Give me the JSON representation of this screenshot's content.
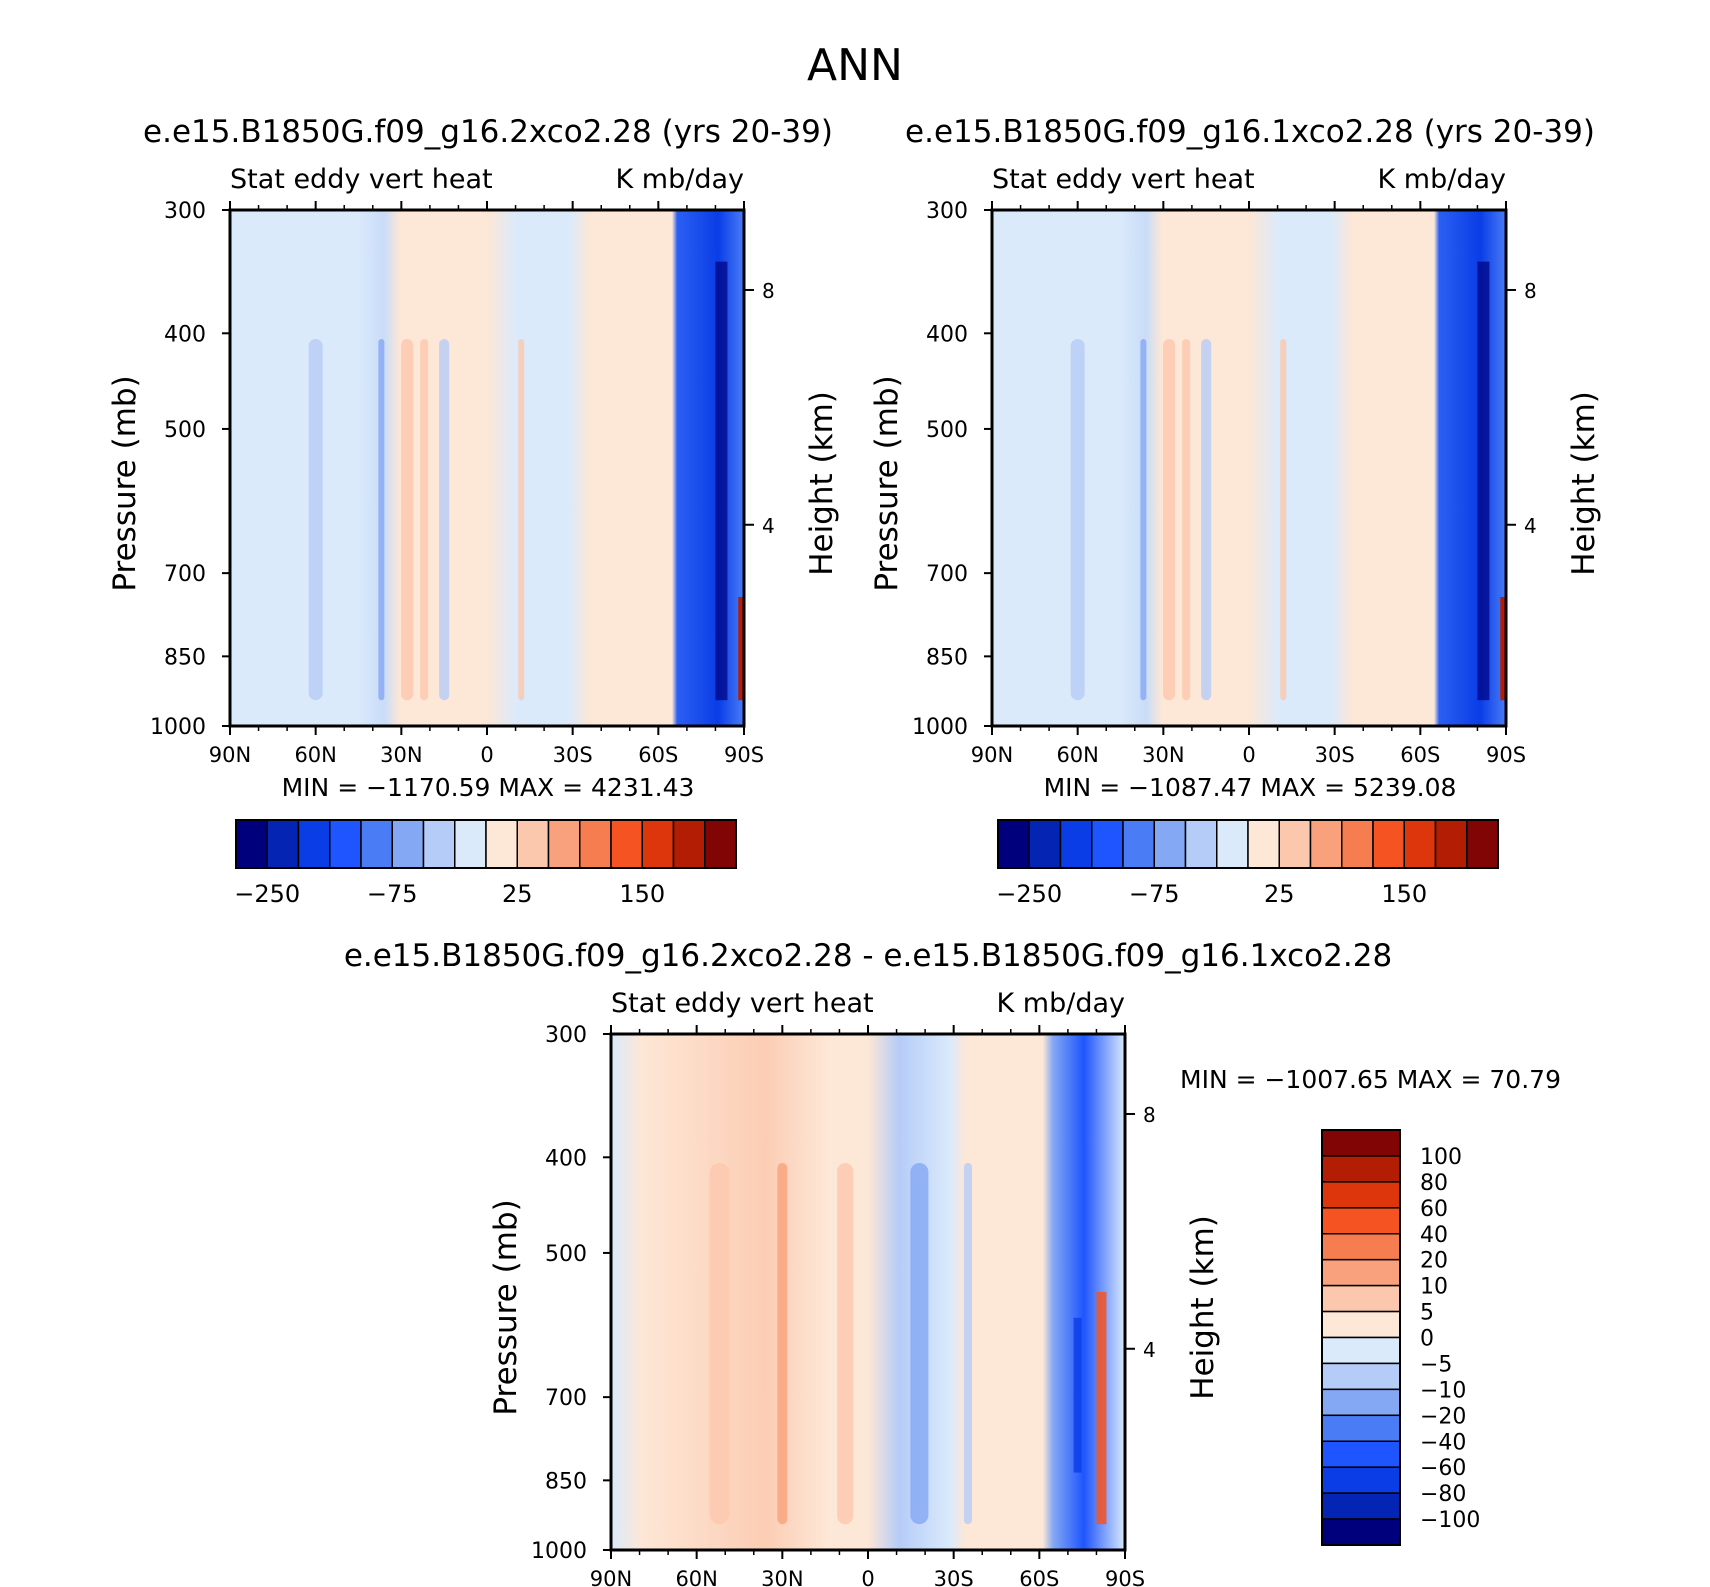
{
  "figure_title": "ANN",
  "chart_data": [
    {
      "type": "heatmap",
      "title": "e.e15.B1850G.f09_g16.2xco2.28 (yrs 20-39)",
      "variable": "Stat eddy vert heat",
      "units": "K mb/day",
      "xlabel": "",
      "ylabel": "Pressure (mb)",
      "ylabel_right": "Height (km)",
      "x_ticks": [
        "90N",
        "60N",
        "30N",
        "0",
        "30S",
        "60S",
        "90S"
      ],
      "y_ticks": [
        "300",
        "400",
        "500",
        "700",
        "850",
        "1000"
      ],
      "height_ticks": [
        "8",
        "4"
      ],
      "xlim": [
        90,
        -90
      ],
      "ylim": [
        1000,
        300
      ],
      "y_scale": "log",
      "min_label": "MIN = -1170.59",
      "max_label": "MAX = 4231.43",
      "colorbar": {
        "orientation": "horizontal",
        "colors": [
          "#00007d",
          "#0424b4",
          "#0a3de6",
          "#1f55ff",
          "#4a7cf6",
          "#84a8f4",
          "#b6ccf8",
          "#daeafb",
          "#fde7d6",
          "#fcc8ad",
          "#f9a17c",
          "#f67d4f",
          "#f55321",
          "#dd360c",
          "#b21d04",
          "#820505"
        ],
        "tick_labels": [
          "-250",
          "-75",
          "25",
          "150"
        ]
      }
    },
    {
      "type": "heatmap",
      "title": "e.e15.B1850G.f09_g16.1xco2.28 (yrs 20-39)",
      "variable": "Stat eddy vert heat",
      "units": "K mb/day",
      "xlabel": "",
      "ylabel": "Pressure (mb)",
      "ylabel_right": "Height (km)",
      "x_ticks": [
        "90N",
        "60N",
        "30N",
        "0",
        "30S",
        "60S",
        "90S"
      ],
      "y_ticks": [
        "300",
        "400",
        "500",
        "700",
        "850",
        "1000"
      ],
      "height_ticks": [
        "8",
        "4"
      ],
      "xlim": [
        90,
        -90
      ],
      "ylim": [
        1000,
        300
      ],
      "y_scale": "log",
      "min_label": "MIN = -1087.47",
      "max_label": "MAX = 5239.08",
      "colorbar": {
        "orientation": "horizontal",
        "colors": [
          "#00007d",
          "#0424b4",
          "#0a3de6",
          "#1f55ff",
          "#4a7cf6",
          "#84a8f4",
          "#b6ccf8",
          "#daeafb",
          "#fde7d6",
          "#fcc8ad",
          "#f9a17c",
          "#f67d4f",
          "#f55321",
          "#dd360c",
          "#b21d04",
          "#820505"
        ],
        "tick_labels": [
          "-250",
          "-75",
          "25",
          "150"
        ]
      }
    },
    {
      "type": "heatmap",
      "title": "e.e15.B1850G.f09_g16.2xco2.28 - e.e15.B1850G.f09_g16.1xco2.28",
      "variable": "Stat eddy vert heat",
      "units": "K mb/day",
      "xlabel": "",
      "ylabel": "Pressure (mb)",
      "ylabel_right": "Height (km)",
      "x_ticks": [
        "90N",
        "60N",
        "30N",
        "0",
        "30S",
        "60S",
        "90S"
      ],
      "y_ticks": [
        "300",
        "400",
        "500",
        "700",
        "850",
        "1000"
      ],
      "height_ticks": [
        "8",
        "4"
      ],
      "xlim": [
        90,
        -90
      ],
      "ylim": [
        1000,
        300
      ],
      "y_scale": "log",
      "min_label": "MIN = -1007.65",
      "max_label": "MAX =  70.79",
      "colorbar": {
        "orientation": "vertical",
        "colors_top_to_bottom": [
          "#820505",
          "#b21d04",
          "#dd360c",
          "#f55321",
          "#f67d4f",
          "#f9a17c",
          "#fcc8ad",
          "#fde7d6",
          "#daeafb",
          "#b6ccf8",
          "#84a8f4",
          "#4a7cf6",
          "#1f55ff",
          "#0a3de6",
          "#0424b4",
          "#00007d"
        ],
        "tick_labels": [
          "100",
          "80",
          "60",
          "40",
          "20",
          "10",
          "5",
          "0",
          "-5",
          "-10",
          "-20",
          "-40",
          "-60",
          "-80",
          "-100"
        ]
      }
    }
  ]
}
